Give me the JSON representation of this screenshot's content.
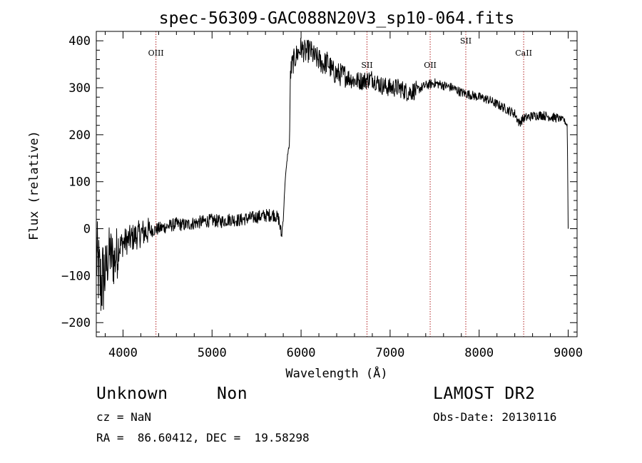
{
  "chart_data": {
    "type": "line",
    "title": "spec-56309-GAC088N20V3_sp10-064.fits",
    "xlabel": "Wavelength (Å)",
    "ylabel": "Flux (relative)",
    "xlim": [
      3700,
      9100
    ],
    "ylim": [
      -230,
      420
    ],
    "xticks": [
      4000,
      5000,
      6000,
      7000,
      8000,
      9000
    ],
    "yticks": [
      -200,
      -100,
      0,
      100,
      200,
      300,
      400
    ],
    "grid": false,
    "line_color": "#000000",
    "marker_color": "#b22222",
    "series": [
      {
        "x": [
          3700,
          3750,
          3800,
          3850,
          3900,
          3950,
          4000,
          4100,
          4200,
          4300,
          4400,
          4500,
          4600,
          4700,
          4800,
          4900,
          5000,
          5100,
          5200,
          5300,
          5400,
          5500,
          5600,
          5700,
          5750,
          5780,
          5800,
          5820,
          5850,
          5870,
          5880,
          5900,
          5950,
          6000,
          6050,
          6100,
          6150,
          6200,
          6250,
          6300,
          6350,
          6400,
          6500,
          6600,
          6700,
          6800,
          6900,
          7000,
          7100,
          7200,
          7300,
          7400,
          7500,
          7600,
          7700,
          7800,
          7900,
          8000,
          8100,
          8200,
          8300,
          8400,
          8450,
          8500,
          8600,
          8700,
          8800,
          8900,
          8950,
          8990,
          9000
        ],
        "y": [
          -60,
          -120,
          -90,
          -50,
          -70,
          -40,
          -30,
          -20,
          -10,
          -5,
          0,
          5,
          10,
          8,
          12,
          15,
          18,
          15,
          20,
          18,
          22,
          25,
          28,
          30,
          20,
          -15,
          20,
          100,
          160,
          180,
          330,
          350,
          370,
          385,
          375,
          380,
          365,
          360,
          350,
          355,
          335,
          330,
          325,
          315,
          315,
          320,
          305,
          300,
          300,
          290,
          295,
          305,
          310,
          305,
          300,
          290,
          285,
          280,
          275,
          265,
          255,
          245,
          225,
          235,
          240,
          242,
          238,
          235,
          232,
          220,
          0
        ]
      }
    ],
    "annotations": [
      {
        "label": "OIII",
        "x": 4370
      },
      {
        "label": "SII",
        "x": 6740
      },
      {
        "label": "OII",
        "x": 7450
      },
      {
        "label": "SII",
        "x": 7850
      },
      {
        "label": "CaII",
        "x": 8500
      }
    ]
  },
  "info": {
    "class": "Unknown",
    "subclass": "Non",
    "cz": "cz = NaN",
    "coords": "RA =  86.60412, DEC =  19.58298",
    "survey": "LAMOST DR2",
    "obs_date": "Obs-Date: 20130116"
  }
}
